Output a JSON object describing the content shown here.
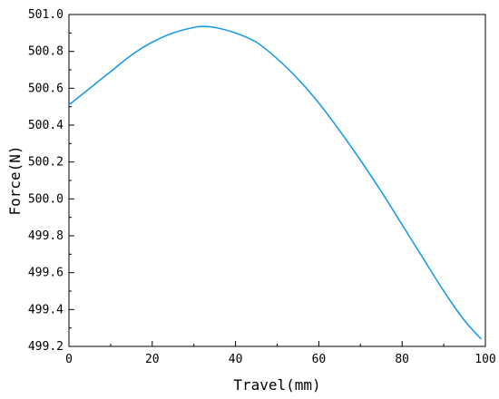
{
  "chart_data": {
    "type": "line",
    "title": "",
    "xlabel": "Travel(mm)",
    "ylabel": "Force(N)",
    "xlim": [
      0,
      100
    ],
    "ylim": [
      499.2,
      501.0
    ],
    "xticks": [
      0,
      20,
      40,
      60,
      80,
      100
    ],
    "xtick_labels": [
      "0",
      "20",
      "40",
      "60",
      "80",
      "100"
    ],
    "yticks": [
      499.2,
      499.4,
      499.6,
      499.8,
      500.0,
      500.2,
      500.4,
      500.6,
      500.8,
      501.0
    ],
    "ytick_labels": [
      "499.2",
      "499.4",
      "499.6",
      "499.8",
      "500.0",
      "500.2",
      "500.4",
      "500.6",
      "500.8",
      "501.0"
    ],
    "grid": false,
    "legend": "none",
    "series": [
      {
        "color": "#1e9be6",
        "x": [
          0,
          5,
          10,
          15,
          20,
          25,
          30,
          32,
          35,
          40,
          45,
          50,
          55,
          60,
          65,
          70,
          75,
          80,
          85,
          90,
          95,
          99
        ],
        "y": [
          500.51,
          500.6,
          500.69,
          500.78,
          500.85,
          500.9,
          500.93,
          500.935,
          500.93,
          500.9,
          500.85,
          500.76,
          500.65,
          500.52,
          500.37,
          500.21,
          500.04,
          499.86,
          499.68,
          499.5,
          499.34,
          499.24
        ]
      }
    ]
  }
}
